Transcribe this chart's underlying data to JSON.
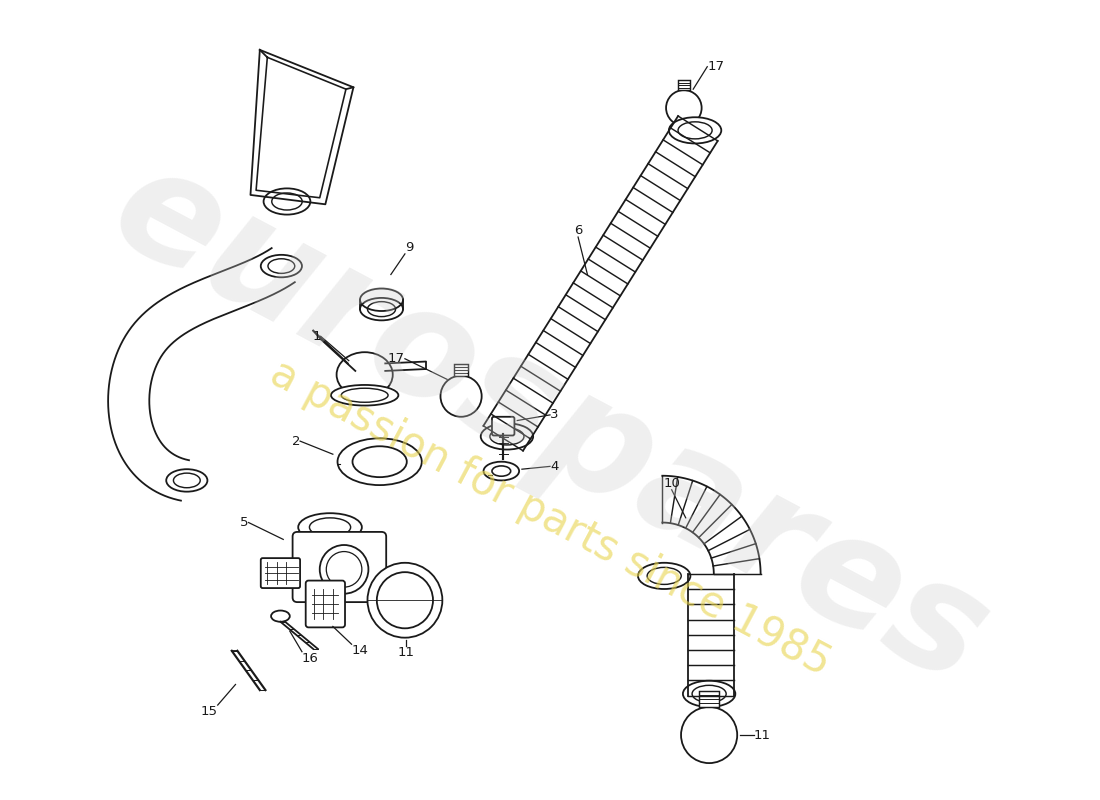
{
  "bg_color": "#ffffff",
  "line_color": "#1a1a1a",
  "lw": 1.3,
  "watermark_text": "eurospares",
  "watermark_subtext": "a passion for parts since 1985",
  "watermark_color": "#cccccc",
  "watermark_yellow": "#e8d44d",
  "figsize": [
    11.0,
    8.0
  ],
  "dpi": 100
}
